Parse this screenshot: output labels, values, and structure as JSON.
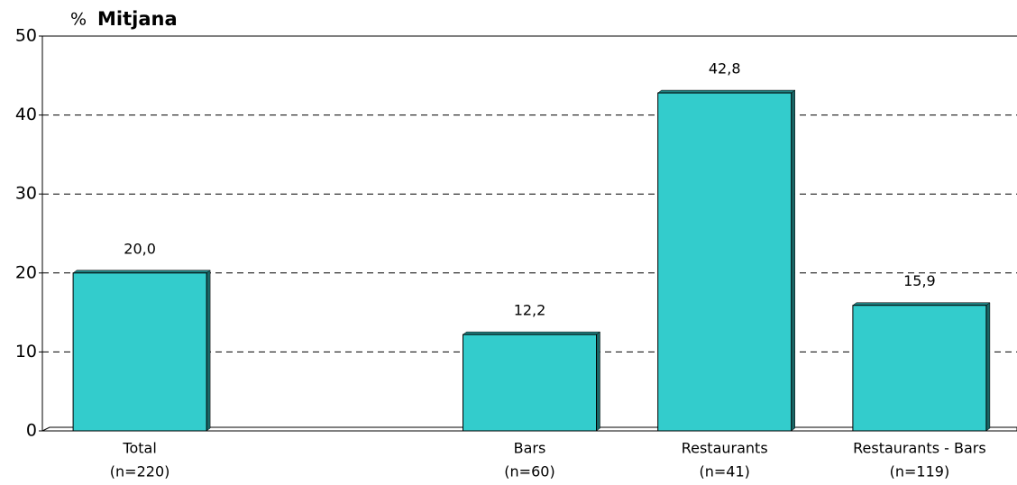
{
  "chart_data": {
    "type": "bar",
    "ylabel": "%",
    "title": "Mitjana",
    "categories": [
      "Total",
      null,
      "Bars",
      "Restaurants",
      "Restaurants - Bars"
    ],
    "sample_sizes": [
      "(n=220)",
      null,
      "(n=60)",
      "(n=41)",
      "(n=119)"
    ],
    "values": [
      20,
      null,
      12.2,
      42.8,
      15.9
    ],
    "value_labels": [
      "20,0",
      null,
      "12,2",
      "42,8",
      "15,9"
    ],
    "color": "#33cccc",
    "ylim": [
      0,
      50
    ],
    "yticks": [
      0,
      10,
      20,
      30,
      40,
      50
    ],
    "grid": true
  }
}
